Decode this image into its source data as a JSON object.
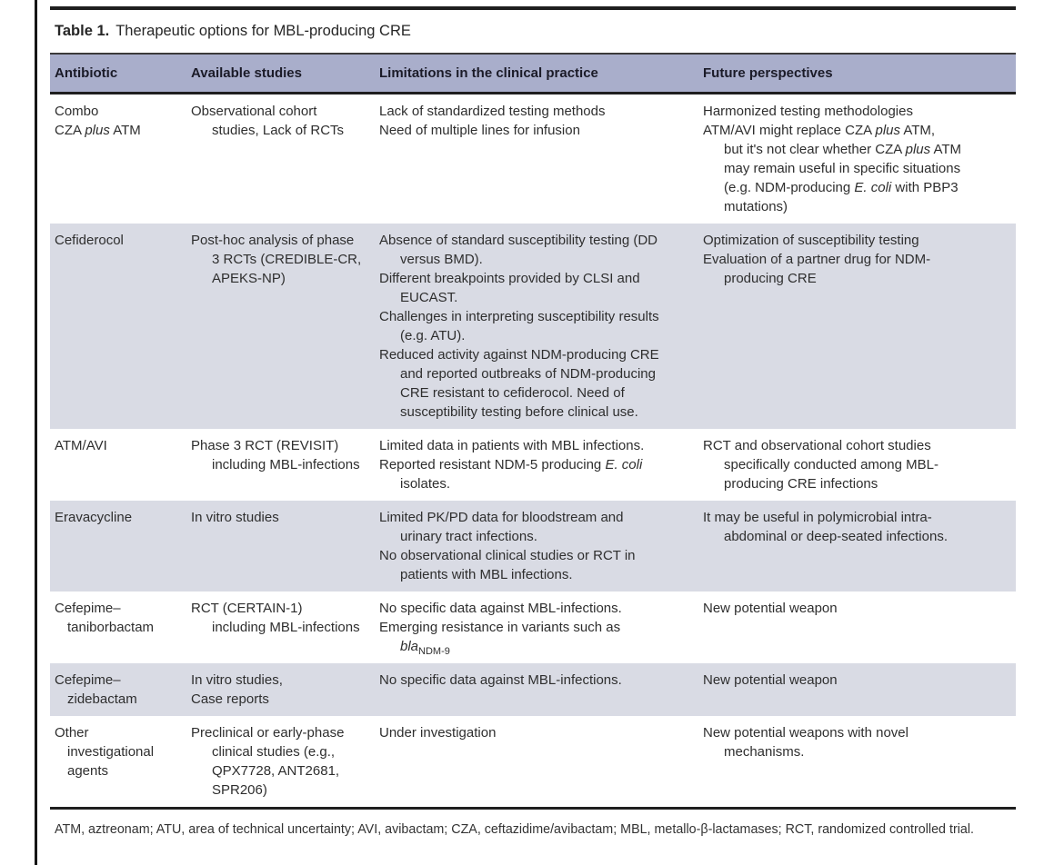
{
  "caption": {
    "label": "Table 1.",
    "text": "Therapeutic options for MBL-producing CRE"
  },
  "table": {
    "columns": [
      "Antibiotic",
      "Available studies",
      "Limitations in the clinical practice",
      "Future perspectives"
    ],
    "rows": [
      {
        "shaded": false,
        "antibiotic": [
          "Combo",
          {
            "seg": [
              {
                "t": "CZA "
              },
              {
                "t": "plus",
                "st": "i"
              },
              {
                "t": " ATM"
              }
            ]
          }
        ],
        "studies": [
          "Observational cohort",
          {
            "ind": 1,
            "t": "studies, Lack of RCTs"
          }
        ],
        "limitations": [
          "Lack of standardized testing methods",
          "Need of multiple lines for infusion"
        ],
        "future": [
          "Harmonized testing methodologies",
          {
            "seg": [
              {
                "t": "ATM/AVI might replace CZA "
              },
              {
                "t": "plus",
                "st": "i"
              },
              {
                "t": " ATM,"
              }
            ]
          },
          {
            "ind": 1,
            "seg": [
              {
                "t": "but it's not clear whether CZA "
              },
              {
                "t": "plus",
                "st": "i"
              },
              {
                "t": " ATM"
              }
            ]
          },
          {
            "ind": 1,
            "t": "may remain useful in specific situations"
          },
          {
            "ind": 1,
            "seg": [
              {
                "t": "(e.g. NDM-producing "
              },
              {
                "t": "E. coli",
                "st": "i"
              },
              {
                "t": " with PBP3"
              }
            ]
          },
          {
            "ind": 1,
            "t": "mutations)"
          }
        ]
      },
      {
        "shaded": true,
        "antibiotic": [
          "Cefiderocol"
        ],
        "studies": [
          "Post-hoc analysis of phase",
          {
            "ind": 1,
            "t": "3 RCTs (CREDIBLE-CR,"
          },
          {
            "ind": 1,
            "t": "APEKS-NP)"
          }
        ],
        "limitations": [
          "Absence of standard susceptibility testing (DD",
          {
            "ind": 1,
            "t": "versus BMD)."
          },
          "Different breakpoints provided by CLSI and",
          {
            "ind": 1,
            "t": "EUCAST."
          },
          "Challenges in interpreting susceptibility results",
          {
            "ind": 1,
            "t": "(e.g. ATU)."
          },
          "Reduced activity against NDM-producing CRE",
          {
            "ind": 1,
            "t": "and reported outbreaks of NDM-producing"
          },
          {
            "ind": 1,
            "t": "CRE resistant to cefiderocol. Need of"
          },
          {
            "ind": 1,
            "t": "susceptibility testing before clinical use."
          }
        ],
        "future": [
          "Optimization of susceptibility testing",
          "Evaluation of a partner drug for NDM-",
          {
            "ind": 1,
            "t": "producing CRE"
          }
        ]
      },
      {
        "shaded": false,
        "antibiotic": [
          "ATM/AVI"
        ],
        "studies": [
          "Phase 3 RCT (REVISIT)",
          {
            "ind": 1,
            "t": "including MBL-infections"
          }
        ],
        "limitations": [
          "Limited data in patients with MBL infections.",
          {
            "seg": [
              {
                "t": "Reported resistant NDM-5 producing "
              },
              {
                "t": "E. coli",
                "st": "i"
              }
            ]
          },
          {
            "ind": 1,
            "t": "isolates."
          }
        ],
        "future": [
          "RCT and observational cohort studies",
          {
            "ind": 1,
            "t": "specifically conducted among MBL-"
          },
          {
            "ind": 1,
            "t": "producing CRE infections"
          }
        ]
      },
      {
        "shaded": true,
        "antibiotic": [
          "Eravacycline"
        ],
        "studies": [
          "In vitro studies"
        ],
        "limitations": [
          "Limited PK/PD data for bloodstream and",
          {
            "ind": 1,
            "t": "urinary tract infections."
          },
          "No observational clinical studies or RCT in",
          {
            "ind": 1,
            "t": "patients with MBL infections."
          }
        ],
        "future": [
          "It may be useful in polymicrobial intra-",
          {
            "ind": 1,
            "t": "abdominal or deep-seated infections."
          }
        ]
      },
      {
        "shaded": false,
        "antibiotic": [
          "Cefepime–",
          {
            "ind": 1,
            "t": "taniborbactam"
          }
        ],
        "studies": [
          "RCT (CERTAIN-1)",
          {
            "ind": 1,
            "t": "including MBL-infections"
          }
        ],
        "limitations": [
          "No specific data against MBL-infections.",
          "Emerging resistance in variants such as",
          {
            "ind": 1,
            "seg": [
              {
                "t": "bla",
                "st": "i"
              },
              {
                "t": "NDM-9",
                "st": "sub"
              }
            ]
          }
        ],
        "future": [
          "New potential weapon"
        ]
      },
      {
        "shaded": true,
        "antibiotic": [
          "Cefepime–",
          {
            "ind": 1,
            "t": "zidebactam"
          }
        ],
        "studies": [
          "In vitro studies,",
          "Case reports"
        ],
        "limitations": [
          "No specific data against MBL-infections."
        ],
        "future": [
          "New potential weapon"
        ]
      },
      {
        "shaded": false,
        "antibiotic": [
          "Other",
          {
            "ind": 1,
            "t": "investigational"
          },
          {
            "ind": 1,
            "t": "agents"
          }
        ],
        "studies": [
          "Preclinical or early-phase",
          {
            "ind": 1,
            "t": "clinical studies (e.g.,"
          },
          {
            "ind": 1,
            "t": "QPX7728, ANT2681,"
          },
          {
            "ind": 1,
            "t": "SPR206)"
          }
        ],
        "limitations": [
          "Under investigation"
        ],
        "future": [
          "New potential weapons with novel",
          {
            "ind": 1,
            "t": "mechanisms."
          }
        ]
      }
    ]
  },
  "footnote": "ATM, aztreonam; ATU, area of technical uncertainty; AVI, avibactam; CZA, ceftazidime/avibactam; MBL, metallo-β-lactamases; RCT, randomized controlled trial.",
  "colors": {
    "header_band": "#a9aecb",
    "shaded_row": "#d9dbe4",
    "rule": "#1f1f1f"
  }
}
